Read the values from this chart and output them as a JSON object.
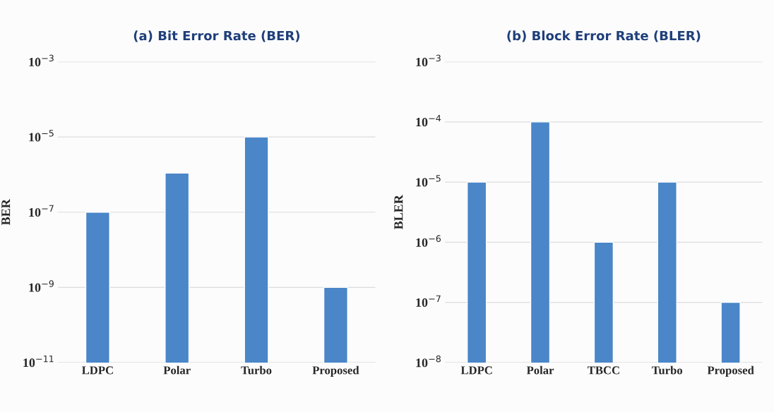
{
  "chart_data": [
    {
      "type": "bar",
      "title": "(a) Bit Error Rate (BER)",
      "ylabel": "BER",
      "categories": [
        "LDPC",
        "Polar",
        "Turbo",
        "Proposed"
      ],
      "values": [
        1e-07,
        1.1e-06,
        1e-05,
        1e-09
      ],
      "color": "#4a86c8",
      "log": true,
      "ylim": [
        1e-11,
        0.001
      ],
      "yticks": [
        {
          "value": 1e-11,
          "label": "10$^{−11}$"
        },
        {
          "value": 1e-09,
          "label": "10$^{−9}$"
        },
        {
          "value": 1e-07,
          "label": "10$^{−7}$"
        },
        {
          "value": 1e-05,
          "label": "10$^{−5}$"
        },
        {
          "value": 0.001,
          "label": "10$^{−3}$"
        }
      ],
      "grid": "y"
    },
    {
      "type": "bar",
      "title": "(b) Block Error Rate (BLER)",
      "ylabel": "BLER",
      "categories": [
        "LDPC",
        "Polar",
        "TBCC",
        "Turbo",
        "Proposed"
      ],
      "values": [
        1e-05,
        0.0001,
        1e-06,
        1e-05,
        1e-07
      ],
      "color": "#4a86c8",
      "log": true,
      "ylim": [
        1e-08,
        0.001
      ],
      "yticks": [
        {
          "value": 1e-08,
          "label": "10$^{−8}$"
        },
        {
          "value": 1e-07,
          "label": "10$^{−7}$"
        },
        {
          "value": 1e-06,
          "label": "10$^{−6}$"
        },
        {
          "value": 1e-05,
          "label": "10$^{−5}$"
        },
        {
          "value": 0.0001,
          "label": "10$^{−4}$"
        },
        {
          "value": 0.001,
          "label": "10$^{−3}$"
        }
      ],
      "grid": "y"
    }
  ]
}
